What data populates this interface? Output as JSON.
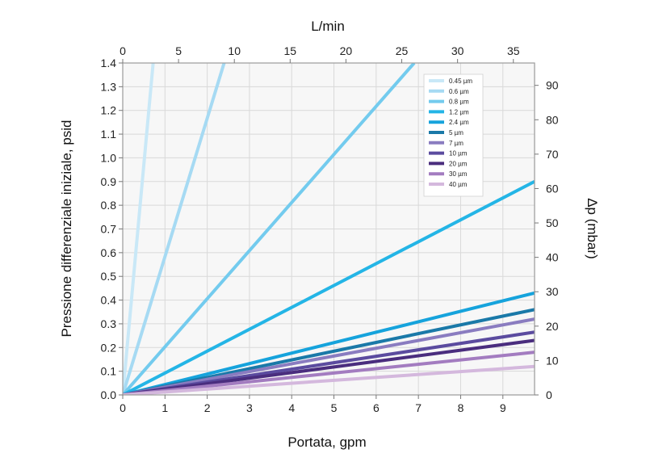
{
  "chart_data": {
    "type": "line",
    "title": "",
    "xlabel": "Portata, gpm",
    "ylabel": "Pressione differenziale iniziale, psid",
    "x2label": "L/min",
    "y2label": "Δp (mbar)",
    "xlim": [
      0,
      9.75
    ],
    "ylim": [
      0,
      1.4
    ],
    "x2lim": [
      0,
      36.9
    ],
    "y2lim": [
      0,
      96.5
    ],
    "xticks": [
      "0",
      "1",
      "2",
      "3",
      "4",
      "5",
      "6",
      "7",
      "8",
      "9"
    ],
    "yticks": [
      "0.0",
      "0.1",
      "0.2",
      "0.3",
      "0.4",
      "0.5",
      "0.6",
      "0.7",
      "0.8",
      "0.9",
      "1.0",
      "1.1",
      "1.2",
      "1.3",
      "1.4"
    ],
    "x2ticks": [
      "0",
      "5",
      "10",
      "15",
      "20",
      "25",
      "30",
      "35"
    ],
    "y2ticks": [
      "0",
      "10",
      "20",
      "30",
      "40",
      "50",
      "60",
      "70",
      "80",
      "90"
    ],
    "grid": true,
    "legend_position": "top-right",
    "series": [
      {
        "name": "0.45 µm",
        "color": "#c9e8f7",
        "x": [
          0,
          0.72
        ],
        "y": [
          0,
          1.4
        ]
      },
      {
        "name": "0.6 µm",
        "color": "#a6daf3",
        "x": [
          0,
          2.4
        ],
        "y": [
          0,
          1.4
        ]
      },
      {
        "name": "0.8 µm",
        "color": "#73cbee",
        "x": [
          0,
          6.9
        ],
        "y": [
          0,
          1.4
        ]
      },
      {
        "name": "1.2 µm",
        "color": "#24b5e6",
        "x": [
          0,
          9.75
        ],
        "y": [
          0,
          0.9
        ]
      },
      {
        "name": "2.4 µm",
        "color": "#16a3dc",
        "x": [
          0,
          9.75
        ],
        "y": [
          0,
          0.43
        ]
      },
      {
        "name": "5 µm",
        "color": "#1a79a8",
        "x": [
          0,
          9.75
        ],
        "y": [
          0,
          0.36
        ]
      },
      {
        "name": "7 µm",
        "color": "#8a7cc0",
        "x": [
          0,
          9.75
        ],
        "y": [
          0,
          0.32
        ]
      },
      {
        "name": "10 µm",
        "color": "#5b4b9f",
        "x": [
          0,
          9.75
        ],
        "y": [
          0,
          0.265
        ]
      },
      {
        "name": "20 µm",
        "color": "#4a2d7e",
        "x": [
          0,
          9.75
        ],
        "y": [
          0,
          0.23
        ]
      },
      {
        "name": "30 µm",
        "color": "#a37cc0",
        "x": [
          0,
          9.75
        ],
        "y": [
          0,
          0.18
        ]
      },
      {
        "name": "40 µm",
        "color": "#d4b8dd",
        "x": [
          0,
          9.75
        ],
        "y": [
          0,
          0.12
        ]
      }
    ]
  }
}
